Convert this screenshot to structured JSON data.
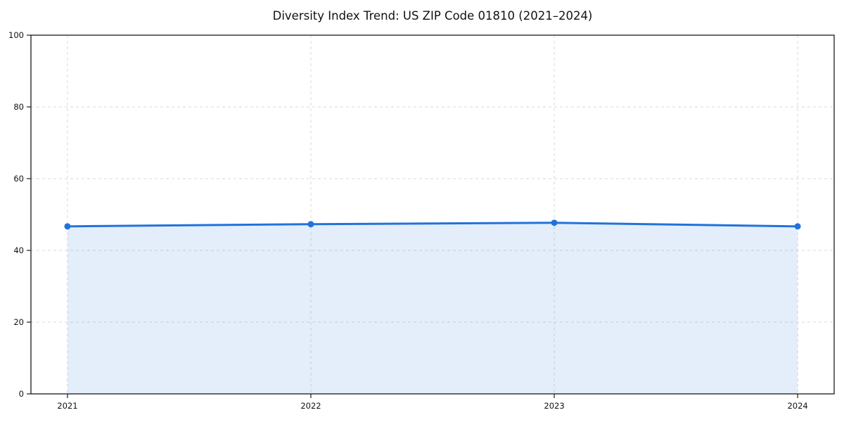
{
  "chart_data": {
    "type": "line",
    "title": "Diversity Index Trend: US ZIP Code 01810 (2021–2024)",
    "categories": [
      "2021",
      "2022",
      "2023",
      "2024"
    ],
    "x": [
      2021,
      2022,
      2023,
      2024
    ],
    "series": [
      {
        "name": "Diversity Index",
        "values": [
          46.7,
          47.3,
          47.7,
          46.7
        ]
      }
    ],
    "xlabel": "",
    "ylabel": "",
    "ylim": [
      0,
      100
    ],
    "yticks": [
      0,
      20,
      40,
      60,
      80,
      100
    ],
    "x_margin_fraction": 0.05,
    "grid": "dashed",
    "legend_position": "none",
    "area_fill": true,
    "marker": "circle",
    "colors": {
      "line": "#2272dc",
      "marker": "#2272dc",
      "fill": "rgba(34,114,220,0.12)",
      "grid": "#d9d9d9",
      "spine": "#1a1a1a",
      "tick_text": "#111111",
      "background": "#ffffff"
    }
  }
}
